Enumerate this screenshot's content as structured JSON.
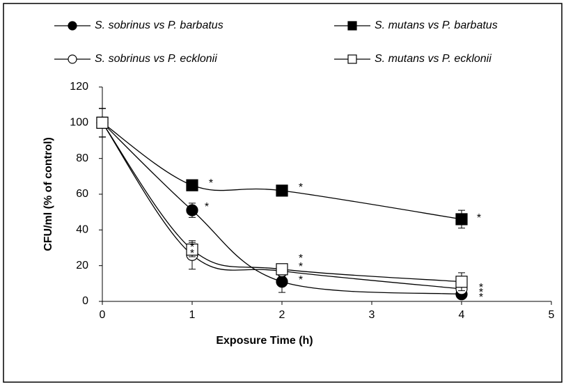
{
  "chart_data": {
    "type": "line",
    "x": [
      0,
      1,
      2,
      4
    ],
    "xlim": [
      0,
      5
    ],
    "xticks": [
      0,
      1,
      2,
      3,
      4,
      5
    ],
    "ylim": [
      0,
      120
    ],
    "yticks": [
      0,
      20,
      40,
      60,
      80,
      100,
      120
    ],
    "x_label": "Exposure Time (h)",
    "y_label": "CFU/ml (% of control)",
    "grid": false,
    "legend": "top",
    "series": [
      {
        "name": "S. sobrinus vs P. barbatus",
        "color": "#000000",
        "marker": "circle",
        "filled": true,
        "values": [
          100,
          51,
          11,
          4
        ],
        "errors": [
          8,
          4,
          6,
          1
        ]
      },
      {
        "name": "S. mutans vs P. barbatus",
        "color": "#000000",
        "marker": "square",
        "filled": true,
        "values": [
          100,
          65,
          62,
          46
        ],
        "errors": [
          8,
          2,
          2,
          5
        ]
      },
      {
        "name": "S. sobrinus vs P. ecklonii",
        "color": "#000000",
        "marker": "circle",
        "filled": false,
        "values": [
          100,
          26,
          17,
          7
        ],
        "errors": [
          8,
          8,
          3,
          2
        ]
      },
      {
        "name": "S. mutans vs P. ecklonii",
        "color": "#000000",
        "marker": "square",
        "filled": false,
        "values": [
          100,
          29,
          18,
          11
        ],
        "errors": [
          8,
          4,
          2,
          5
        ]
      }
    ],
    "annotations": [
      "*",
      "*",
      "*",
      "*",
      "*",
      "*",
      "*",
      "*",
      "*",
      "*",
      "*",
      "*"
    ]
  }
}
